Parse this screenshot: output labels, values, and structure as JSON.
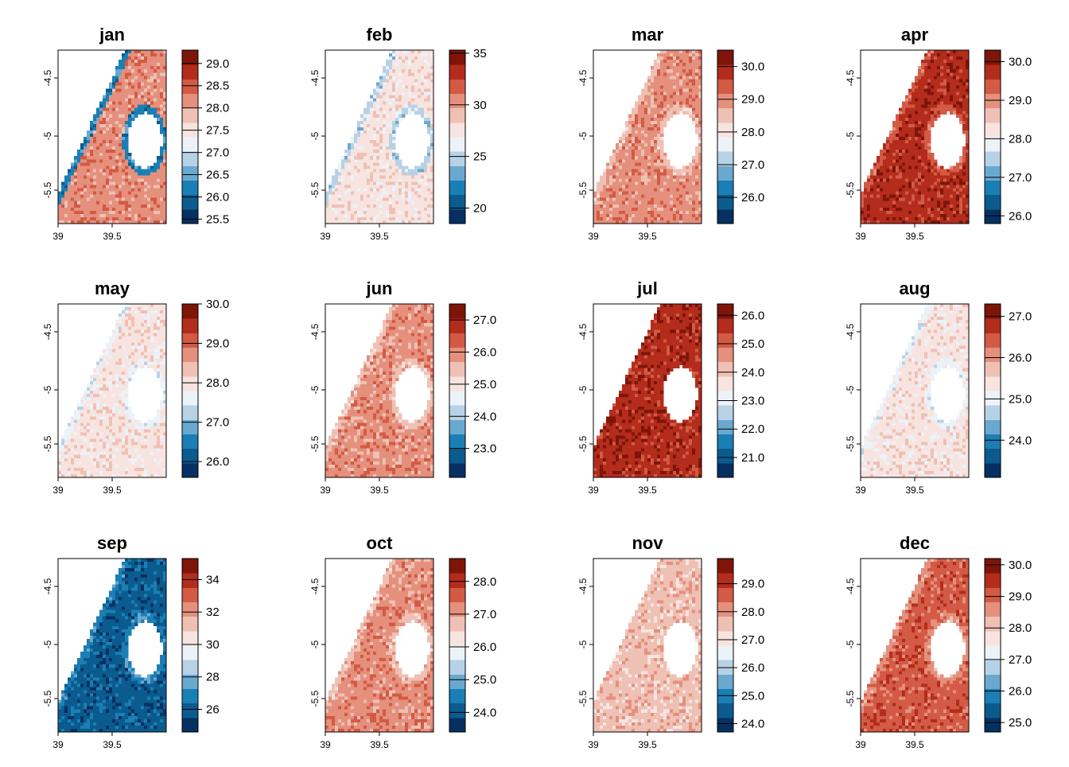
{
  "palette": [
    "#053061",
    "#0b5b8f",
    "#1a7fb5",
    "#6aa9cf",
    "#b7d2e6",
    "#ecf2f7",
    "#f7e4e0",
    "#efc0b4",
    "#e4907d",
    "#d35a44",
    "#b32c1c",
    "#7e1508"
  ],
  "chart_data": [
    {
      "type": "heatmap",
      "title": "jan",
      "xlim": [
        39,
        40
      ],
      "ylim": [
        -5.8,
        -4.3
      ],
      "x_ticks": [
        "39",
        "39.5"
      ],
      "y_ticks": [
        "-4.5",
        "-5",
        "-5.5"
      ],
      "colorbar": {
        "min": 25.4,
        "max": 29.3,
        "ticks": [
          {
            "v": 25.5,
            "label": "25.5"
          },
          {
            "v": 26.0,
            "label": "26.0"
          },
          {
            "v": 26.5,
            "label": "26.5"
          },
          {
            "v": 27.0,
            "label": "27.0"
          },
          {
            "v": 27.5,
            "label": "27.5"
          },
          {
            "v": 28.0,
            "label": "28.0"
          },
          {
            "v": 28.5,
            "label": "28.5"
          },
          {
            "v": 29.0,
            "label": "29.0"
          }
        ]
      },
      "dominant_level": 8,
      "coast_level": 2
    },
    {
      "type": "heatmap",
      "title": "feb",
      "xlim": [
        39,
        40
      ],
      "ylim": [
        -5.8,
        -4.3
      ],
      "x_ticks": [
        "39",
        "39.5"
      ],
      "y_ticks": [
        "-4.5",
        "-5",
        "-5.5"
      ],
      "colorbar": {
        "min": 18.5,
        "max": 35.3,
        "ticks": [
          {
            "v": 20,
            "label": "20"
          },
          {
            "v": 25,
            "label": "25"
          },
          {
            "v": 30,
            "label": "30"
          },
          {
            "v": 35,
            "label": "35"
          }
        ]
      },
      "dominant_level": 6,
      "coast_level": 4
    },
    {
      "type": "heatmap",
      "title": "mar",
      "xlim": [
        39,
        40
      ],
      "ylim": [
        -5.8,
        -4.3
      ],
      "x_ticks": [
        "39",
        "39.5"
      ],
      "y_ticks": [
        "-4.5",
        "-5",
        "-5.5"
      ],
      "colorbar": {
        "min": 25.2,
        "max": 30.5,
        "ticks": [
          {
            "v": 26.0,
            "label": "26.0"
          },
          {
            "v": 27.0,
            "label": "27.0"
          },
          {
            "v": 28.0,
            "label": "28.0"
          },
          {
            "v": 29.0,
            "label": "29.0"
          },
          {
            "v": 30.0,
            "label": "30.0"
          }
        ]
      },
      "dominant_level": 8,
      "coast_level": 7
    },
    {
      "type": "heatmap",
      "title": "apr",
      "xlim": [
        39,
        40
      ],
      "ylim": [
        -5.8,
        -4.3
      ],
      "x_ticks": [
        "39",
        "39.5"
      ],
      "y_ticks": [
        "-4.5",
        "-5",
        "-5.5"
      ],
      "colorbar": {
        "min": 25.8,
        "max": 30.3,
        "ticks": [
          {
            "v": 26.0,
            "label": "26.0"
          },
          {
            "v": 27.0,
            "label": "27.0"
          },
          {
            "v": 28.0,
            "label": "28.0"
          },
          {
            "v": 29.0,
            "label": "29.0"
          },
          {
            "v": 30.0,
            "label": "30.0"
          }
        ]
      },
      "dominant_level": 10,
      "coast_level": 9
    },
    {
      "type": "heatmap",
      "title": "may",
      "xlim": [
        39,
        40
      ],
      "ylim": [
        -5.8,
        -4.3
      ],
      "x_ticks": [
        "39",
        "39.5"
      ],
      "y_ticks": [
        "-4.5",
        "-5",
        "-5.5"
      ],
      "colorbar": {
        "min": 25.6,
        "max": 30.0,
        "ticks": [
          {
            "v": 26.0,
            "label": "26.0"
          },
          {
            "v": 27.0,
            "label": "27.0"
          },
          {
            "v": 28.0,
            "label": "28.0"
          },
          {
            "v": 29.0,
            "label": "29.0"
          },
          {
            "v": 30.0,
            "label": "30.0"
          }
        ]
      },
      "dominant_level": 6,
      "coast_level": 5
    },
    {
      "type": "heatmap",
      "title": "jun",
      "xlim": [
        39,
        40
      ],
      "ylim": [
        -5.8,
        -4.3
      ],
      "x_ticks": [
        "39",
        "39.5"
      ],
      "y_ticks": [
        "-4.5",
        "-5",
        "-5.5"
      ],
      "colorbar": {
        "min": 22.1,
        "max": 27.5,
        "ticks": [
          {
            "v": 23.0,
            "label": "23.0"
          },
          {
            "v": 24.0,
            "label": "24.0"
          },
          {
            "v": 25.0,
            "label": "25.0"
          },
          {
            "v": 26.0,
            "label": "26.0"
          },
          {
            "v": 27.0,
            "label": "27.0"
          }
        ]
      },
      "dominant_level": 8,
      "coast_level": 7
    },
    {
      "type": "heatmap",
      "title": "jul",
      "xlim": [
        39,
        40
      ],
      "ylim": [
        -5.8,
        -4.3
      ],
      "x_ticks": [
        "39",
        "39.5"
      ],
      "y_ticks": [
        "-4.5",
        "-5",
        "-5.5"
      ],
      "colorbar": {
        "min": 20.3,
        "max": 26.4,
        "ticks": [
          {
            "v": 21.0,
            "label": "21.0"
          },
          {
            "v": 22.0,
            "label": "22.0"
          },
          {
            "v": 23.0,
            "label": "23.0"
          },
          {
            "v": 24.0,
            "label": "24.0"
          },
          {
            "v": 25.0,
            "label": "25.0"
          },
          {
            "v": 26.0,
            "label": "26.0"
          }
        ]
      },
      "dominant_level": 10,
      "coast_level": 10
    },
    {
      "type": "heatmap",
      "title": "aug",
      "xlim": [
        39,
        40
      ],
      "ylim": [
        -5.8,
        -4.3
      ],
      "x_ticks": [
        "39",
        "39.5"
      ],
      "y_ticks": [
        "-4.5",
        "-5",
        "-5.5"
      ],
      "colorbar": {
        "min": 23.1,
        "max": 27.3,
        "ticks": [
          {
            "v": 24.0,
            "label": "24.0"
          },
          {
            "v": 25.0,
            "label": "25.0"
          },
          {
            "v": 26.0,
            "label": "26.0"
          },
          {
            "v": 27.0,
            "label": "27.0"
          }
        ]
      },
      "dominant_level": 6,
      "coast_level": 5
    },
    {
      "type": "heatmap",
      "title": "sep",
      "xlim": [
        39,
        40
      ],
      "ylim": [
        -5.8,
        -4.3
      ],
      "x_ticks": [
        "39",
        "39.5"
      ],
      "y_ticks": [
        "-4.5",
        "-5",
        "-5.5"
      ],
      "colorbar": {
        "min": 24.6,
        "max": 35.3,
        "ticks": [
          {
            "v": 26,
            "label": "26"
          },
          {
            "v": 28,
            "label": "28"
          },
          {
            "v": 30,
            "label": "30"
          },
          {
            "v": 32,
            "label": "32"
          },
          {
            "v": 34,
            "label": "34"
          }
        ]
      },
      "dominant_level": 1,
      "coast_level": 2
    },
    {
      "type": "heatmap",
      "title": "oct",
      "xlim": [
        39,
        40
      ],
      "ylim": [
        -5.8,
        -4.3
      ],
      "x_ticks": [
        "39",
        "39.5"
      ],
      "y_ticks": [
        "-4.5",
        "-5",
        "-5.5"
      ],
      "colorbar": {
        "min": 23.4,
        "max": 28.7,
        "ticks": [
          {
            "v": 24.0,
            "label": "24.0"
          },
          {
            "v": 25.0,
            "label": "25.0"
          },
          {
            "v": 26.0,
            "label": "26.0"
          },
          {
            "v": 27.0,
            "label": "27.0"
          },
          {
            "v": 28.0,
            "label": "28.0"
          }
        ]
      },
      "dominant_level": 8,
      "coast_level": 7
    },
    {
      "type": "heatmap",
      "title": "nov",
      "xlim": [
        39,
        40
      ],
      "ylim": [
        -5.8,
        -4.3
      ],
      "x_ticks": [
        "39",
        "39.5"
      ],
      "y_ticks": [
        "-4.5",
        "-5",
        "-5.5"
      ],
      "colorbar": {
        "min": 23.7,
        "max": 29.9,
        "ticks": [
          {
            "v": 24.0,
            "label": "24.0"
          },
          {
            "v": 25.0,
            "label": "25.0"
          },
          {
            "v": 26.0,
            "label": "26.0"
          },
          {
            "v": 27.0,
            "label": "27.0"
          },
          {
            "v": 28.0,
            "label": "28.0"
          },
          {
            "v": 29.0,
            "label": "29.0"
          }
        ]
      },
      "dominant_level": 7,
      "coast_level": 7
    },
    {
      "type": "heatmap",
      "title": "dec",
      "xlim": [
        39,
        40
      ],
      "ylim": [
        -5.8,
        -4.3
      ],
      "x_ticks": [
        "39",
        "39.5"
      ],
      "y_ticks": [
        "-4.5",
        "-5",
        "-5.5"
      ],
      "colorbar": {
        "min": 24.7,
        "max": 30.2,
        "ticks": [
          {
            "v": 25.0,
            "label": "25.0"
          },
          {
            "v": 26.0,
            "label": "26.0"
          },
          {
            "v": 27.0,
            "label": "27.0"
          },
          {
            "v": 28.0,
            "label": "28.0"
          },
          {
            "v": 29.0,
            "label": "29.0"
          },
          {
            "v": 30.0,
            "label": "30.0"
          }
        ]
      },
      "dominant_level": 9,
      "coast_level": 8
    }
  ]
}
